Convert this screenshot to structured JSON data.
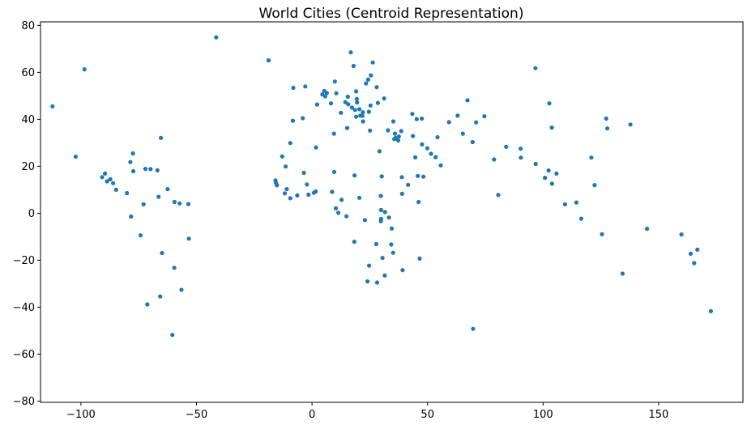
{
  "chart_data": {
    "type": "scatter",
    "title": "World Cities (Centroid Representation)",
    "xlabel": "",
    "ylabel": "",
    "xlim": [
      -117.5,
      186.5
    ],
    "ylim": [
      -80.5,
      81.5
    ],
    "xticks": [
      -100,
      -50,
      0,
      50,
      100,
      150
    ],
    "yticks": [
      -80,
      -60,
      -40,
      -20,
      0,
      20,
      40,
      60,
      80
    ],
    "xtick_labels": [
      "−100",
      "−50",
      "0",
      "50",
      "100",
      "150"
    ],
    "ytick_labels": [
      "−80",
      "−60",
      "−40",
      "−20",
      "0",
      "20",
      "40",
      "60",
      "80"
    ],
    "grid": false,
    "marker_color": "#1f77b4",
    "points": [
      [
        -112.3,
        45.5
      ],
      [
        -102.3,
        24.1
      ],
      [
        -98.5,
        61.3
      ],
      [
        -41.5,
        74.9
      ],
      [
        -18.8,
        65.1
      ],
      [
        -90.8,
        15.4
      ],
      [
        -89.6,
        16.9
      ],
      [
        -88.7,
        13.6
      ],
      [
        -87.3,
        14.5
      ],
      [
        -86.1,
        12.8
      ],
      [
        -84.8,
        10.0
      ],
      [
        -80.1,
        8.6
      ],
      [
        -78.6,
        21.8
      ],
      [
        -77.5,
        25.5
      ],
      [
        -77.3,
        17.9
      ],
      [
        -78.3,
        -1.4
      ],
      [
        -74.2,
        -9.4
      ],
      [
        -72.9,
        3.8
      ],
      [
        -72.1,
        18.9
      ],
      [
        -71.3,
        -38.8
      ],
      [
        -69.9,
        18.8
      ],
      [
        -66.9,
        18.3
      ],
      [
        -66.4,
        7.0
      ],
      [
        -65.4,
        32.1
      ],
      [
        -64.9,
        -16.9
      ],
      [
        -65.7,
        -35.4
      ],
      [
        -62.5,
        10.3
      ],
      [
        -60.4,
        -51.8
      ],
      [
        -59.5,
        4.8
      ],
      [
        -59.6,
        -23.2
      ],
      [
        -57.3,
        4.2
      ],
      [
        -56.5,
        -32.6
      ],
      [
        -53.5,
        3.9
      ],
      [
        -53.3,
        -10.8
      ],
      [
        -15.8,
        14.0
      ],
      [
        -15.2,
        11.9
      ],
      [
        -15.6,
        12.9
      ],
      [
        -12.9,
        24.2
      ],
      [
        -11.8,
        8.5
      ],
      [
        -10.9,
        10.3
      ],
      [
        -11.4,
        19.9
      ],
      [
        -9.4,
        6.4
      ],
      [
        -9.4,
        29.9
      ],
      [
        -8.3,
        39.4
      ],
      [
        -8.1,
        53.4
      ],
      [
        -6.4,
        7.6
      ],
      [
        -4.0,
        40.5
      ],
      [
        -2.9,
        54.0
      ],
      [
        -3.5,
        17.2
      ],
      [
        -2.2,
        12.3
      ],
      [
        -1.5,
        7.9
      ],
      [
        0.8,
        8.7
      ],
      [
        1.6,
        9.3
      ],
      [
        1.7,
        28.0
      ],
      [
        2.2,
        46.3
      ],
      [
        4.5,
        50.6
      ],
      [
        5.3,
        52.1
      ],
      [
        5.7,
        49.8
      ],
      [
        6.4,
        51.2
      ],
      [
        8.2,
        46.8
      ],
      [
        8.7,
        9.1
      ],
      [
        9.6,
        17.6
      ],
      [
        9.5,
        33.9
      ],
      [
        10.5,
        51.1
      ],
      [
        9.9,
        56.1
      ],
      [
        10.3,
        2.1
      ],
      [
        11.4,
        0.2
      ],
      [
        12.5,
        42.8
      ],
      [
        12.8,
        5.7
      ],
      [
        14.4,
        47.3
      ],
      [
        14.9,
        -1.3
      ],
      [
        15.2,
        36.3
      ],
      [
        15.5,
        49.6
      ],
      [
        15.7,
        46.4
      ],
      [
        16.8,
        68.5
      ],
      [
        17.3,
        45.0
      ],
      [
        18.0,
        62.7
      ],
      [
        18.3,
        -12.1
      ],
      [
        18.4,
        16.1
      ],
      [
        18.6,
        44.0
      ],
      [
        19.1,
        51.9
      ],
      [
        19.4,
        48.7
      ],
      [
        19.1,
        41.1
      ],
      [
        19.5,
        47.2
      ],
      [
        20.5,
        44.3
      ],
      [
        20.9,
        41.6
      ],
      [
        21.8,
        41.5
      ],
      [
        20.5,
        6.6
      ],
      [
        22.0,
        43.0
      ],
      [
        22.1,
        39.1
      ],
      [
        22.9,
        -2.9
      ],
      [
        23.4,
        55.3
      ],
      [
        24.3,
        56.9
      ],
      [
        24.6,
        43.2
      ],
      [
        25.5,
        58.7
      ],
      [
        25.1,
        35.2
      ],
      [
        24.0,
        -29.0
      ],
      [
        24.7,
        -22.3
      ],
      [
        25.3,
        45.9
      ],
      [
        26.3,
        64.2
      ],
      [
        27.8,
        -13.1
      ],
      [
        28.0,
        53.7
      ],
      [
        28.2,
        -29.5
      ],
      [
        28.5,
        47.0
      ],
      [
        29.2,
        26.4
      ],
      [
        29.9,
        1.4
      ],
      [
        29.9,
        -2.4
      ],
      [
        29.8,
        -3.4
      ],
      [
        29.8,
        7.4
      ],
      [
        30.2,
        15.7
      ],
      [
        30.5,
        -19.0
      ],
      [
        31.2,
        48.9
      ],
      [
        31.5,
        -26.5
      ],
      [
        31.6,
        0.5
      ],
      [
        32.9,
        35.3
      ],
      [
        33.3,
        -1.8
      ],
      [
        34.3,
        -13.3
      ],
      [
        35.2,
        39.1
      ],
      [
        35.1,
        -16.8
      ],
      [
        34.5,
        -6.5
      ],
      [
        35.6,
        31.6
      ],
      [
        36.2,
        32.1
      ],
      [
        35.9,
        33.9
      ],
      [
        37.3,
        31.0
      ],
      [
        37.6,
        32.7
      ],
      [
        38.6,
        35.0
      ],
      [
        38.9,
        15.4
      ],
      [
        39.2,
        -24.2
      ],
      [
        39.0,
        8.3
      ],
      [
        41.6,
        12.1
      ],
      [
        43.4,
        42.3
      ],
      [
        43.7,
        32.9
      ],
      [
        44.7,
        23.8
      ],
      [
        45.3,
        40.1
      ],
      [
        45.8,
        15.9
      ],
      [
        46.1,
        4.8
      ],
      [
        46.6,
        -19.3
      ],
      [
        47.5,
        40.3
      ],
      [
        47.6,
        29.3
      ],
      [
        48.2,
        15.6
      ],
      [
        49.9,
        27.7
      ],
      [
        51.5,
        25.3
      ],
      [
        53.5,
        23.9
      ],
      [
        54.3,
        32.4
      ],
      [
        55.7,
        20.4
      ],
      [
        59.3,
        38.8
      ],
      [
        63.0,
        41.6
      ],
      [
        65.3,
        33.9
      ],
      [
        67.3,
        48.1
      ],
      [
        69.5,
        30.3
      ],
      [
        71.0,
        38.7
      ],
      [
        74.6,
        41.3
      ],
      [
        69.7,
        -49.2
      ],
      [
        78.8,
        22.9
      ],
      [
        80.6,
        7.8
      ],
      [
        84.0,
        28.3
      ],
      [
        90.3,
        27.5
      ],
      [
        90.4,
        23.7
      ],
      [
        96.7,
        61.8
      ],
      [
        96.8,
        21.0
      ],
      [
        100.8,
        15.1
      ],
      [
        102.7,
        46.8
      ],
      [
        102.4,
        18.2
      ],
      [
        103.8,
        36.5
      ],
      [
        103.9,
        12.6
      ],
      [
        105.8,
        16.9
      ],
      [
        109.5,
        3.8
      ],
      [
        114.4,
        4.6
      ],
      [
        116.5,
        -2.3
      ],
      [
        120.9,
        23.7
      ],
      [
        122.3,
        12.0
      ],
      [
        125.5,
        -8.9
      ],
      [
        127.3,
        40.3
      ],
      [
        127.8,
        36.1
      ],
      [
        137.8,
        37.8
      ],
      [
        134.4,
        -25.7
      ],
      [
        145.0,
        -6.6
      ],
      [
        159.9,
        -9.0
      ],
      [
        163.9,
        -17.2
      ],
      [
        165.4,
        -21.2
      ],
      [
        166.8,
        -15.5
      ],
      [
        172.6,
        -41.7
      ]
    ]
  }
}
